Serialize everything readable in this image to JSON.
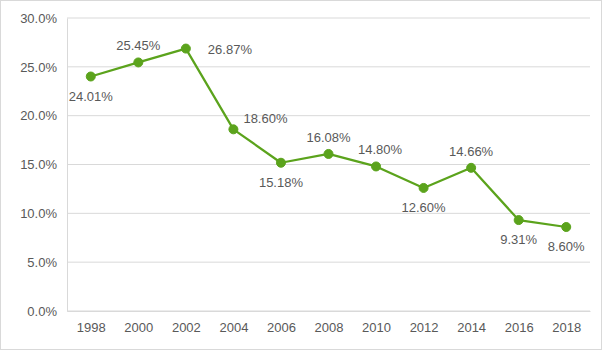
{
  "chart_data": {
    "type": "line",
    "categories": [
      "1998",
      "2000",
      "2002",
      "2004",
      "2006",
      "2008",
      "2010",
      "2012",
      "2014",
      "2016",
      "2018"
    ],
    "values": [
      24.01,
      25.45,
      26.87,
      18.6,
      15.18,
      16.08,
      14.8,
      12.6,
      14.66,
      9.31,
      8.6
    ],
    "value_labels": [
      "24.01%",
      "25.45%",
      "26.87%",
      "18.60%",
      "15.18%",
      "16.08%",
      "14.80%",
      "12.60%",
      "14.66%",
      "9.31%",
      "8.60%"
    ],
    "color": "#5ba31c",
    "marker": "circle",
    "ylim": [
      0,
      30
    ],
    "yticks": [
      {
        "value": 0,
        "label": "0.0%"
      },
      {
        "value": 5,
        "label": "5.0%"
      },
      {
        "value": 10,
        "label": "10.0%"
      },
      {
        "value": 15,
        "label": "15.0%"
      },
      {
        "value": 20,
        "label": "20.0%"
      },
      {
        "value": 25,
        "label": "25.0%"
      },
      {
        "value": 30,
        "label": "30.0%"
      }
    ],
    "grid": true,
    "data_labels": true
  }
}
